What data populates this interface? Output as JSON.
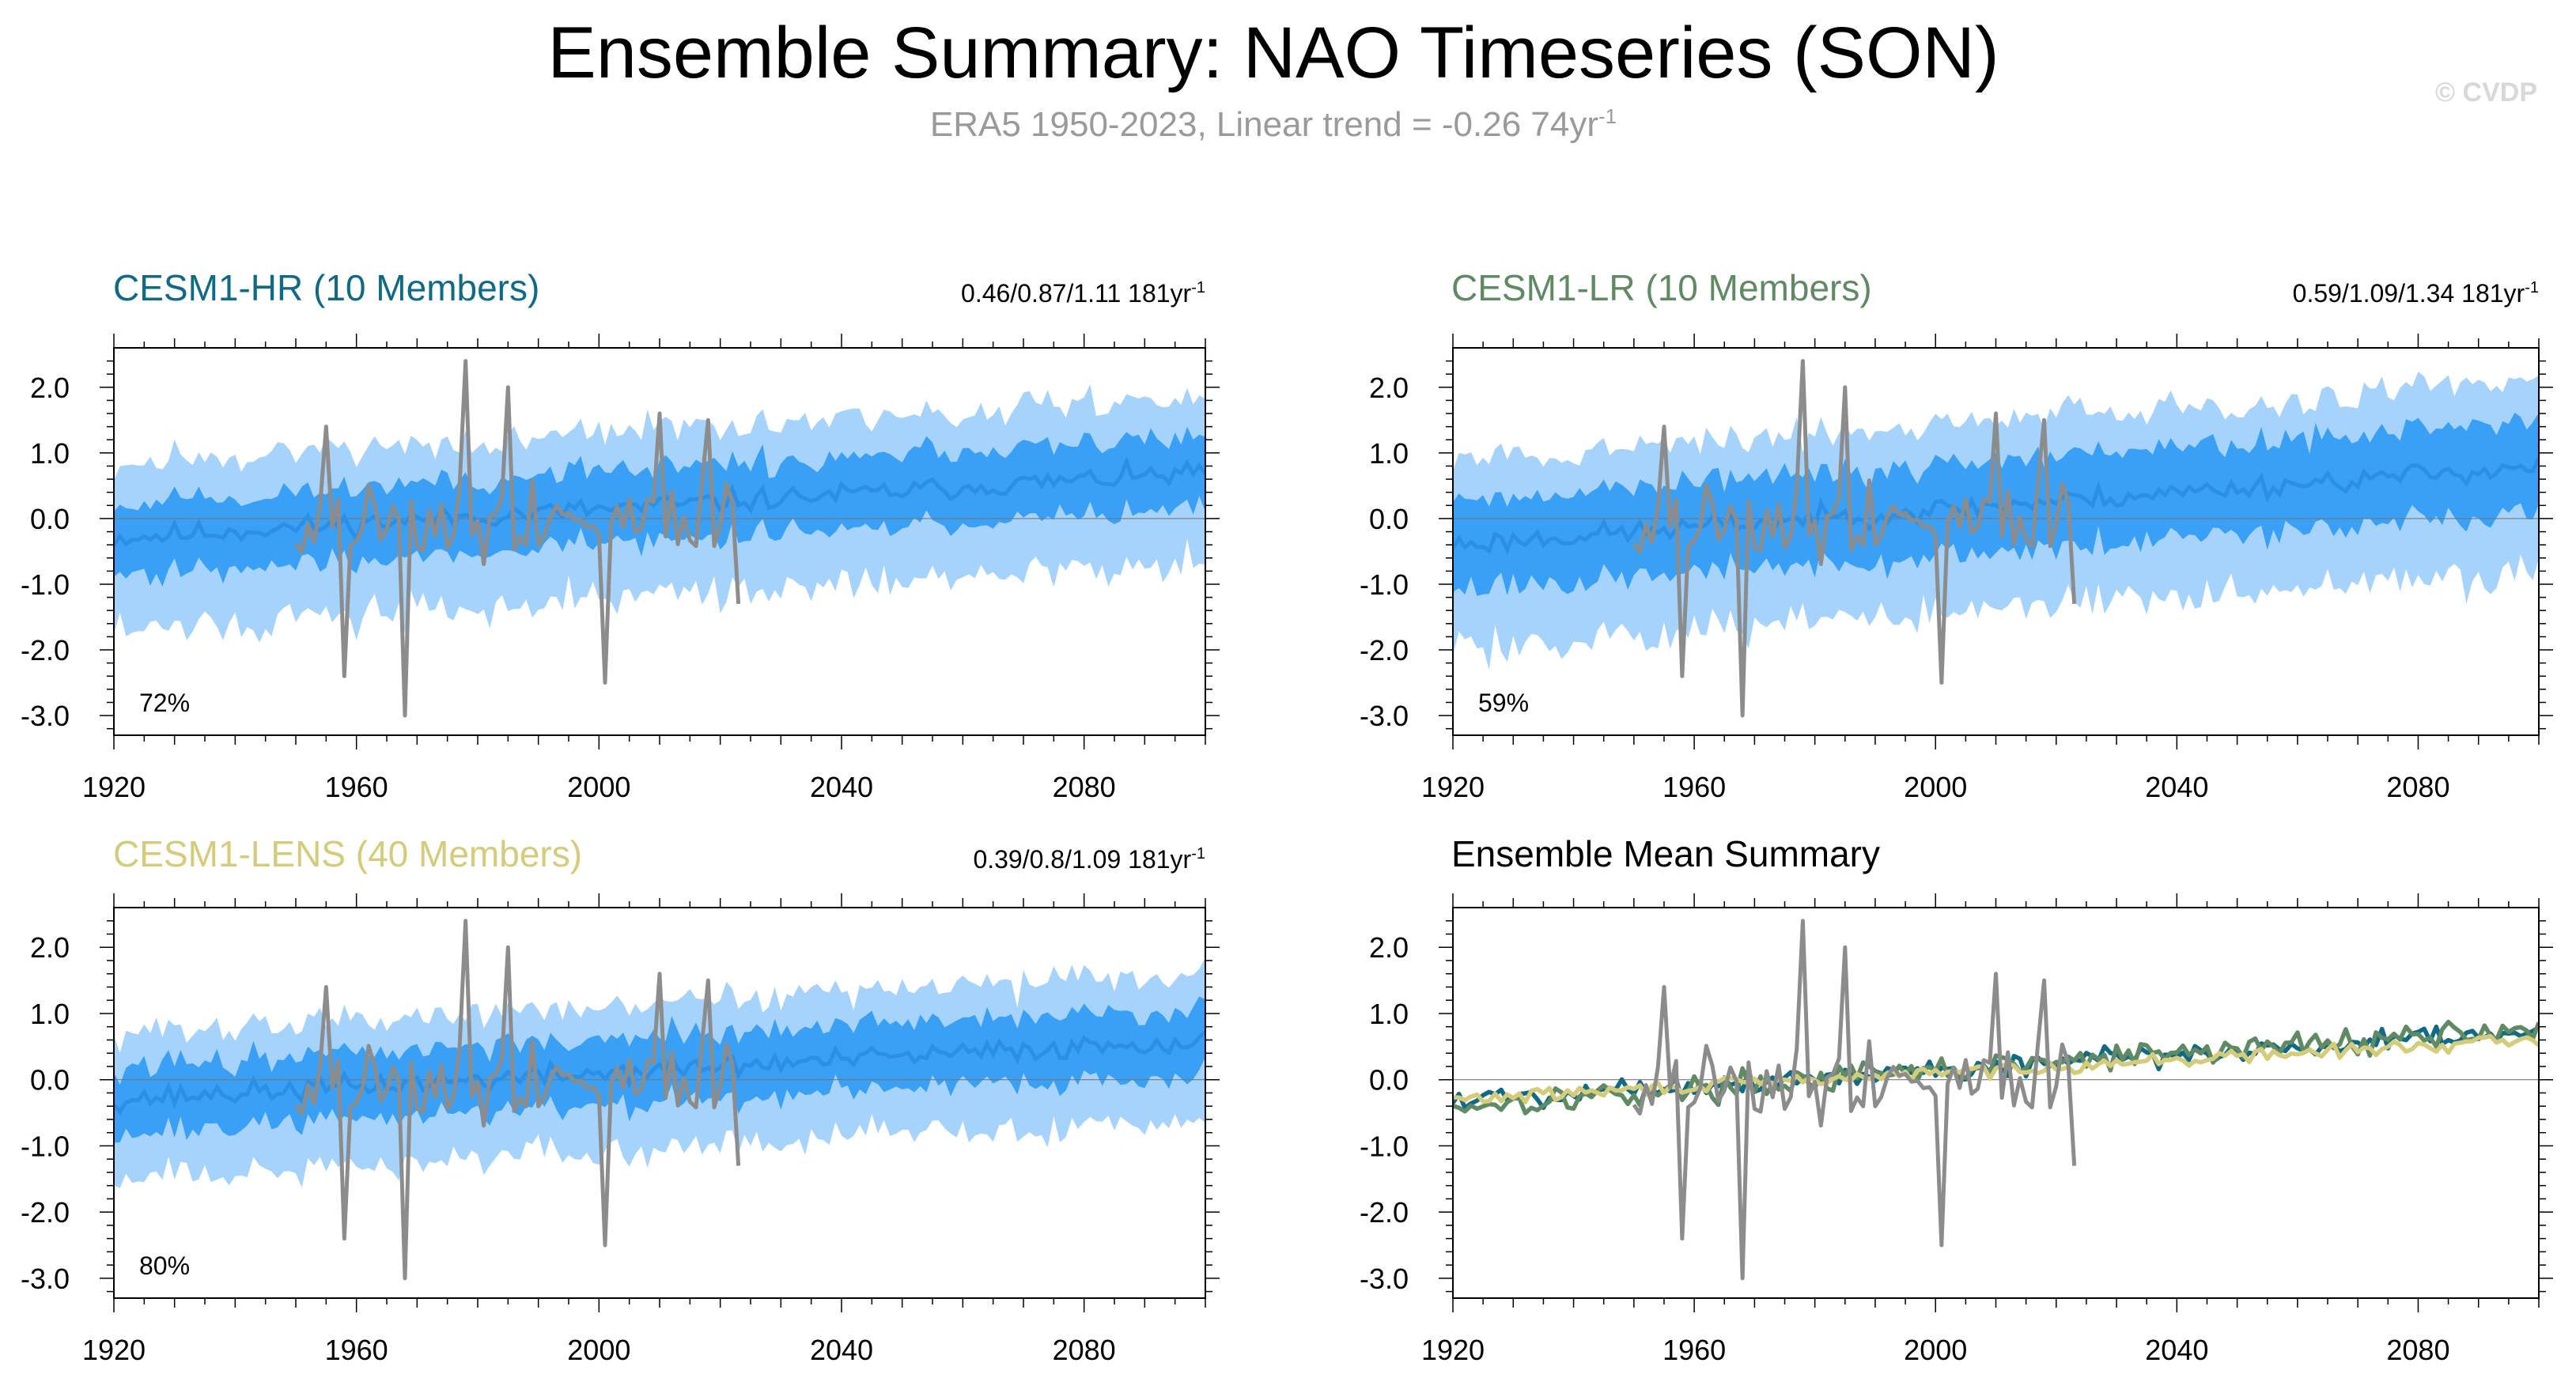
{
  "figure": {
    "title": "Ensemble Summary: NAO Timeseries (SON)",
    "subtitle_main": "ERA5 1950-2023, Linear trend = -0.26 74yr",
    "subtitle_sup": "-1",
    "watermark": "© CVDP"
  },
  "colors": {
    "band_outer": "#a6d3fb",
    "band_inner": "#3aa0f5",
    "ensemble_mean": "#2b8fe6",
    "observations": "#8c8c8c",
    "cesm1_hr": "#0f6a86",
    "cesm1_lr": "#5f8a63",
    "cesm1_lens": "#d4cc7a"
  },
  "chart_data": [
    {
      "id": "cesm1-hr",
      "type": "area",
      "title": "CESM1-HR (10 Members)",
      "title_color": "#0f6a86",
      "stats_main": "0.46/0.87/1.11 181yr",
      "stats_sup": "-1",
      "percent_label": "72%",
      "x_range": [
        1920,
        2100
      ],
      "ylim": [
        -3.3,
        2.6
      ],
      "x_ticks": [
        "1920",
        "1960",
        "2000",
        "2040",
        "2080"
      ],
      "y_ticks": [
        "2.0",
        "1.0",
        "0.0",
        "-1.0",
        "-2.0",
        "-3.0"
      ],
      "ensemble": {
        "seed": 11,
        "amp_outer": 1.15,
        "amp_inner": 0.55,
        "trend_start": -0.3,
        "trend_end": 0.7
      },
      "observations": {
        "name": "ERA5",
        "start": 1950,
        "end": 2023
      }
    },
    {
      "id": "cesm1-lr",
      "type": "area",
      "title": "CESM1-LR (10 Members)",
      "title_color": "#5f8a63",
      "stats_main": "0.59/1.09/1.34 181yr",
      "stats_sup": "-1",
      "percent_label": "59%",
      "x_range": [
        1920,
        2100
      ],
      "ylim": [
        -3.3,
        2.6
      ],
      "x_ticks": [
        "1920",
        "1960",
        "2000",
        "2040",
        "2080"
      ],
      "y_ticks": [
        "2.0",
        "1.0",
        "0.0",
        "-1.0",
        "-2.0",
        "-3.0"
      ],
      "ensemble": {
        "seed": 23,
        "amp_outer": 1.3,
        "amp_inner": 0.7,
        "trend_start": -0.4,
        "trend_end": 0.8
      },
      "observations": {
        "name": "ERA5",
        "start": 1950,
        "end": 2023
      }
    },
    {
      "id": "cesm1-lens",
      "type": "area",
      "title": "CESM1-LENS (40 Members)",
      "title_color": "#d4cc7a",
      "stats_main": "0.39/0.8/1.09 181yr",
      "stats_sup": "-1",
      "percent_label": "80%",
      "x_range": [
        1920,
        2100
      ],
      "ylim": [
        -3.3,
        2.6
      ],
      "x_ticks": [
        "1920",
        "1960",
        "2000",
        "2040",
        "2080"
      ],
      "y_ticks": [
        "2.0",
        "1.0",
        "0.0",
        "-1.0",
        "-2.0",
        "-3.0"
      ],
      "ensemble": {
        "seed": 37,
        "amp_outer": 1.0,
        "amp_inner": 0.5,
        "trend_start": -0.3,
        "trend_end": 0.6
      },
      "observations": {
        "name": "ERA5",
        "start": 1950,
        "end": 2023
      }
    },
    {
      "id": "ensemble-mean-summary",
      "type": "line",
      "title": "Ensemble Mean Summary",
      "title_color": "#000000",
      "x_range": [
        1920,
        2100
      ],
      "ylim": [
        -3.3,
        2.6
      ],
      "x_ticks": [
        "1920",
        "1960",
        "2000",
        "2040",
        "2080"
      ],
      "y_ticks": [
        "2.0",
        "1.0",
        "0.0",
        "-1.0",
        "-2.0",
        "-3.0"
      ],
      "series": [
        {
          "name": "CESM1-HR",
          "color": "#0f6a86",
          "seed": 5,
          "amp": 0.28,
          "trend_start": -0.3,
          "trend_end": 0.7
        },
        {
          "name": "CESM1-LR",
          "color": "#5f8a63",
          "seed": 17,
          "amp": 0.3,
          "trend_start": -0.4,
          "trend_end": 0.8
        },
        {
          "name": "CESM1-LENS",
          "color": "#d4cc7a",
          "seed": 29,
          "amp": 0.15,
          "trend_start": -0.3,
          "trend_end": 0.6
        },
        {
          "name": "ERA5",
          "color": "#8c8c8c",
          "observations": true,
          "start": 1950,
          "end": 2023
        }
      ]
    }
  ],
  "observations_anchor_points": [
    {
      "year": 1955,
      "value": 1.4
    },
    {
      "year": 1958,
      "value": -2.4
    },
    {
      "year": 1968,
      "value": -3.0
    },
    {
      "year": 1978,
      "value": 2.4
    },
    {
      "year": 1985,
      "value": 2.0
    },
    {
      "year": 2001,
      "value": -2.5
    },
    {
      "year": 2010,
      "value": 1.6
    },
    {
      "year": 2018,
      "value": 1.5
    },
    {
      "year": 2023,
      "value": -1.3
    }
  ]
}
